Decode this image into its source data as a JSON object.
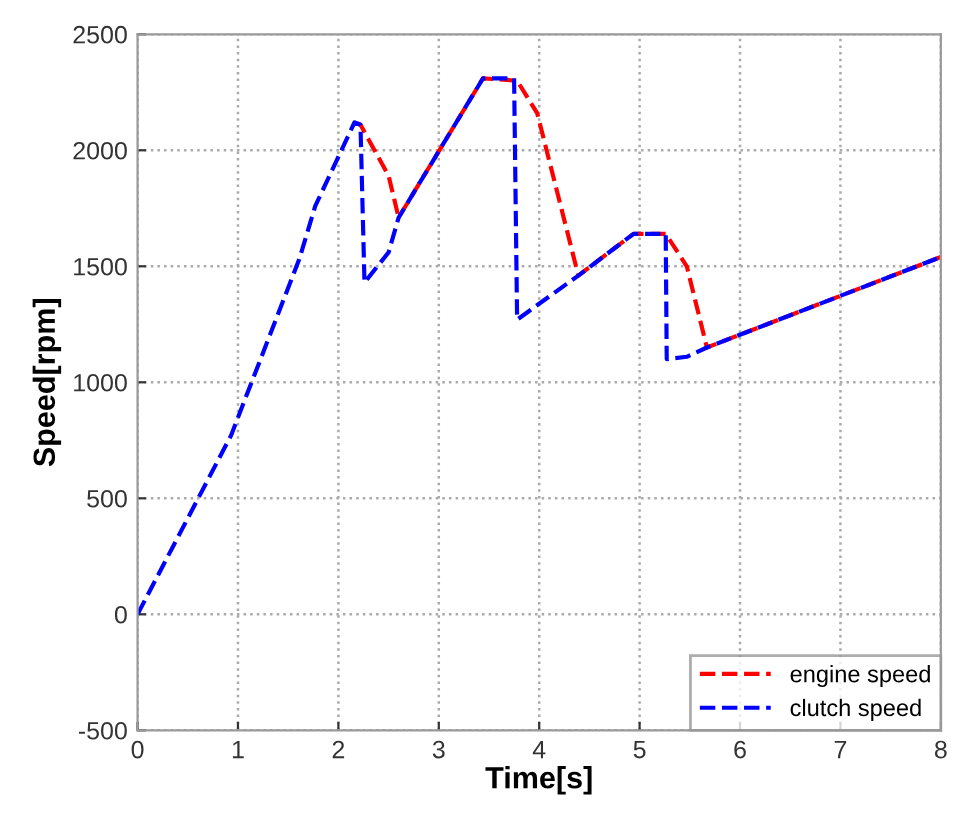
{
  "chart_data": {
    "type": "line",
    "xlabel": "Time[s]",
    "ylabel": "Speed[rpm]",
    "xlim": [
      0,
      8
    ],
    "xticks": [
      0,
      1,
      2,
      3,
      4,
      5,
      6,
      7,
      8
    ],
    "ylim": [
      -500,
      2500
    ],
    "yticks": [
      -500,
      0,
      500,
      1000,
      1500,
      2000,
      2500
    ],
    "grid": true,
    "legend": "bottom right",
    "line_style": "dashed",
    "marker": "none",
    "series": [
      {
        "name": "engine speed",
        "color": "#ff0000",
        "x": [
          2.16,
          2.22,
          2.5,
          2.6,
          3.44,
          3.78,
          3.98,
          4.39,
          4.94,
          5.26,
          5.47,
          5.67,
          8
        ],
        "values": [
          2120,
          2110,
          1890,
          1710,
          2310,
          2300,
          2160,
          1460,
          1640,
          1640,
          1500,
          1150,
          1540
        ]
      },
      {
        "name": "clutch speed",
        "color": "#0000ff",
        "x": [
          0,
          0.93,
          1.61,
          1.77,
          2.16,
          2.22,
          2.26,
          2.5,
          2.6,
          3.44,
          3.75,
          3.78,
          4.39,
          4.94,
          5.26,
          5.27,
          5.47,
          5.67,
          8
        ],
        "values": [
          0,
          770,
          1530,
          1760,
          2120,
          2110,
          1430,
          1560,
          1710,
          2310,
          2310,
          1270,
          1460,
          1640,
          1640,
          1100,
          1110,
          1150,
          1540
        ]
      }
    ]
  }
}
